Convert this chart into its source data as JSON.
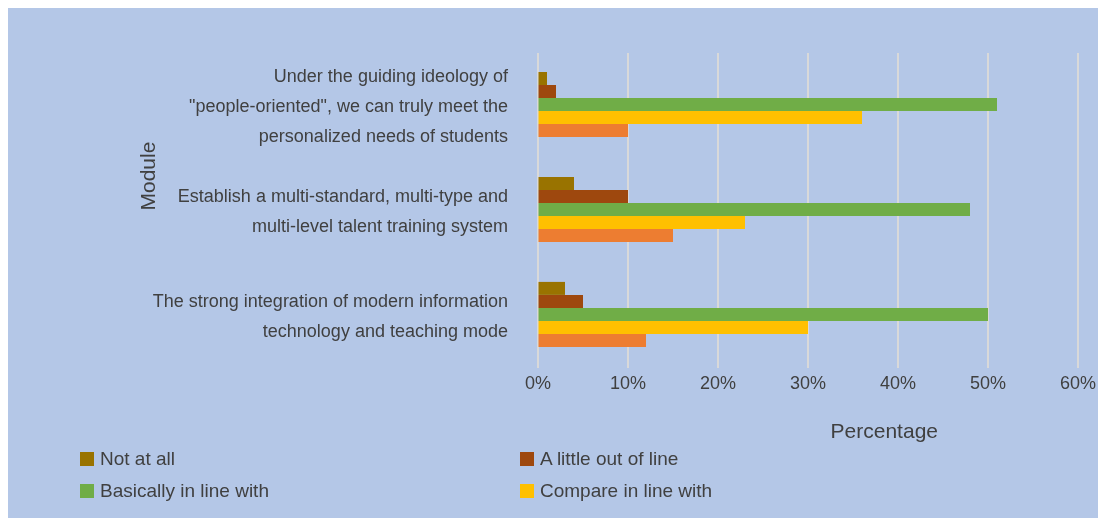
{
  "chart_data": {
    "type": "bar",
    "orientation": "horizontal",
    "categories": [
      "Under the guiding ideology of \"people-oriented\", we can truly meet the personalized needs of students",
      "Establish a multi-standard, multi-type and multi-level talent training system",
      "The strong integration of modern information technology and teaching mode"
    ],
    "series": [
      {
        "name": "Not at all",
        "color": "#997300",
        "values": [
          1,
          4,
          3
        ]
      },
      {
        "name": "A little out of line",
        "color": "#9e480e",
        "values": [
          2,
          10,
          5
        ]
      },
      {
        "name": "Basically in line with",
        "color": "#70ad47",
        "values": [
          51,
          48,
          50
        ]
      },
      {
        "name": "Compare in line with",
        "color": "#ffc000",
        "values": [
          36,
          23,
          30
        ]
      },
      {
        "color": "#ed7d31",
        "values": [
          10,
          15,
          12
        ]
      }
    ],
    "xlim": [
      0,
      60
    ],
    "xticks": [
      {
        "value": 0,
        "label": "0%"
      },
      {
        "value": 10,
        "label": "10%"
      },
      {
        "value": 20,
        "label": "20%"
      },
      {
        "value": 30,
        "label": "30%"
      },
      {
        "value": 40,
        "label": "40%"
      },
      {
        "value": 50,
        "label": "50%"
      },
      {
        "value": 60,
        "label": "60%"
      }
    ],
    "xlabel": "Percentage",
    "ylabel": "Module",
    "grid": "x",
    "legend": "bottom"
  }
}
